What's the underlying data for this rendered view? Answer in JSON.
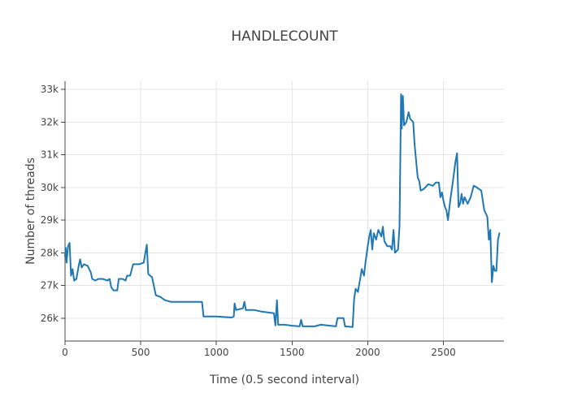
{
  "chart_data": {
    "type": "line",
    "title": "HANDLECOUNT",
    "xlabel": "Time (0.5 second interval)",
    "ylabel": "Number of threads",
    "xlim": [
      0,
      2900
    ],
    "ylim": [
      25300,
      33250
    ],
    "x_ticks": [
      0,
      500,
      1000,
      1500,
      2000,
      2500
    ],
    "x_tick_labels": [
      "0",
      "500",
      "1000",
      "1500",
      "2000",
      "2500"
    ],
    "y_ticks": [
      26000,
      27000,
      28000,
      29000,
      30000,
      31000,
      32000,
      33000
    ],
    "y_tick_labels": [
      "26k",
      "27k",
      "28k",
      "29k",
      "30k",
      "31k",
      "32k",
      "33k"
    ],
    "grid": true,
    "legend": "none",
    "series": [
      {
        "color": "#1f77b4",
        "points": [
          [
            0,
            27900
          ],
          [
            5,
            28150
          ],
          [
            10,
            27700
          ],
          [
            20,
            28200
          ],
          [
            30,
            28300
          ],
          [
            40,
            27300
          ],
          [
            50,
            27500
          ],
          [
            60,
            27150
          ],
          [
            75,
            27200
          ],
          [
            90,
            27600
          ],
          [
            100,
            27800
          ],
          [
            110,
            27550
          ],
          [
            125,
            27650
          ],
          [
            150,
            27600
          ],
          [
            170,
            27400
          ],
          [
            180,
            27200
          ],
          [
            200,
            27150
          ],
          [
            220,
            27200
          ],
          [
            250,
            27200
          ],
          [
            280,
            27150
          ],
          [
            295,
            27200
          ],
          [
            305,
            26950
          ],
          [
            320,
            26850
          ],
          [
            345,
            26850
          ],
          [
            355,
            27200
          ],
          [
            380,
            27200
          ],
          [
            400,
            27150
          ],
          [
            410,
            27300
          ],
          [
            430,
            27300
          ],
          [
            450,
            27650
          ],
          [
            490,
            27650
          ],
          [
            520,
            27700
          ],
          [
            540,
            28250
          ],
          [
            550,
            27350
          ],
          [
            575,
            27250
          ],
          [
            600,
            26700
          ],
          [
            630,
            26650
          ],
          [
            660,
            26550
          ],
          [
            700,
            26500
          ],
          [
            760,
            26500
          ],
          [
            800,
            26500
          ],
          [
            860,
            26500
          ],
          [
            905,
            26500
          ],
          [
            915,
            26050
          ],
          [
            1000,
            26050
          ],
          [
            1100,
            26020
          ],
          [
            1115,
            26050
          ],
          [
            1120,
            26450
          ],
          [
            1130,
            26250
          ],
          [
            1175,
            26300
          ],
          [
            1185,
            26500
          ],
          [
            1195,
            26250
          ],
          [
            1250,
            26250
          ],
          [
            1300,
            26200
          ],
          [
            1380,
            26150
          ],
          [
            1390,
            25780
          ],
          [
            1400,
            26550
          ],
          [
            1408,
            25800
          ],
          [
            1450,
            25800
          ],
          [
            1500,
            25770
          ],
          [
            1550,
            25750
          ],
          [
            1560,
            25950
          ],
          [
            1570,
            25750
          ],
          [
            1650,
            25750
          ],
          [
            1690,
            25800
          ],
          [
            1750,
            25770
          ],
          [
            1790,
            25750
          ],
          [
            1800,
            26000
          ],
          [
            1840,
            26000
          ],
          [
            1850,
            25750
          ],
          [
            1900,
            25730
          ],
          [
            1910,
            26600
          ],
          [
            1920,
            26900
          ],
          [
            1935,
            26800
          ],
          [
            1950,
            27200
          ],
          [
            1960,
            27500
          ],
          [
            1975,
            27300
          ],
          [
            1985,
            27700
          ],
          [
            2000,
            28200
          ],
          [
            2010,
            28500
          ],
          [
            2020,
            28700
          ],
          [
            2030,
            28100
          ],
          [
            2040,
            28600
          ],
          [
            2055,
            28400
          ],
          [
            2070,
            28700
          ],
          [
            2090,
            28500
          ],
          [
            2100,
            28800
          ],
          [
            2110,
            28350
          ],
          [
            2130,
            28200
          ],
          [
            2150,
            28200
          ],
          [
            2160,
            28100
          ],
          [
            2170,
            28700
          ],
          [
            2180,
            28000
          ],
          [
            2200,
            28100
          ],
          [
            2210,
            28800
          ],
          [
            2220,
            32850
          ],
          [
            2225,
            31800
          ],
          [
            2232,
            32800
          ],
          [
            2240,
            31900
          ],
          [
            2255,
            32000
          ],
          [
            2270,
            32300
          ],
          [
            2280,
            32100
          ],
          [
            2300,
            32000
          ],
          [
            2310,
            31300
          ],
          [
            2320,
            30800
          ],
          [
            2330,
            30300
          ],
          [
            2340,
            30200
          ],
          [
            2350,
            29900
          ],
          [
            2370,
            29950
          ],
          [
            2400,
            30100
          ],
          [
            2430,
            30050
          ],
          [
            2450,
            30150
          ],
          [
            2470,
            30150
          ],
          [
            2480,
            29700
          ],
          [
            2490,
            29850
          ],
          [
            2500,
            29600
          ],
          [
            2510,
            29400
          ],
          [
            2520,
            29300
          ],
          [
            2530,
            29000
          ],
          [
            2545,
            29600
          ],
          [
            2560,
            30100
          ],
          [
            2580,
            30800
          ],
          [
            2590,
            31050
          ],
          [
            2600,
            29400
          ],
          [
            2610,
            29500
          ],
          [
            2620,
            29800
          ],
          [
            2630,
            29500
          ],
          [
            2640,
            29700
          ],
          [
            2660,
            29500
          ],
          [
            2680,
            29700
          ],
          [
            2700,
            30050
          ],
          [
            2720,
            30000
          ],
          [
            2750,
            29900
          ],
          [
            2760,
            29600
          ],
          [
            2770,
            29300
          ],
          [
            2780,
            29200
          ],
          [
            2790,
            29100
          ],
          [
            2800,
            28400
          ],
          [
            2810,
            28700
          ],
          [
            2820,
            27100
          ],
          [
            2830,
            27600
          ],
          [
            2840,
            27450
          ],
          [
            2850,
            27450
          ],
          [
            2860,
            28400
          ],
          [
            2870,
            28600
          ]
        ]
      }
    ]
  }
}
